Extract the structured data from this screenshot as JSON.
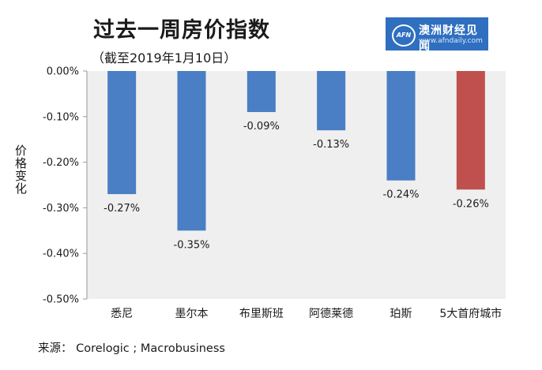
{
  "chart_data": {
    "type": "bar",
    "title": "过去一周房价指数",
    "subtitle": "（截至2019年1月10日）",
    "ylabel": "价格变化",
    "xlabel": "",
    "categories": [
      "悉尼",
      "墨尔本",
      "布里斯班",
      "阿德莱德",
      "珀斯",
      "5大首府城市"
    ],
    "values": [
      -0.27,
      -0.35,
      -0.09,
      -0.13,
      -0.24,
      -0.26
    ],
    "data_labels": [
      "-0.27%",
      "-0.35%",
      "-0.09%",
      "-0.13%",
      "-0.24%",
      "-0.26%"
    ],
    "bar_colors": [
      "#4a7ec5",
      "#4a7ec5",
      "#4a7ec5",
      "#4a7ec5",
      "#4a7ec5",
      "#c0504d"
    ],
    "yticks": [
      0,
      -0.1,
      -0.2,
      -0.3,
      -0.4,
      -0.5
    ],
    "ytick_labels": [
      "0.00%",
      "-0.10%",
      "-0.20%",
      "-0.30%",
      "-0.40%",
      "-0.50%"
    ],
    "ylim": [
      -0.5,
      0
    ],
    "grid": false,
    "plot_background": "#efefef",
    "legend": "none"
  },
  "source": "来源：  Corelogic ; Macrobusiness",
  "logo": {
    "name": "澳洲财经见闻",
    "url": "www.afndaily.com",
    "badge": "AFN",
    "color": "#2f6fc0"
  }
}
